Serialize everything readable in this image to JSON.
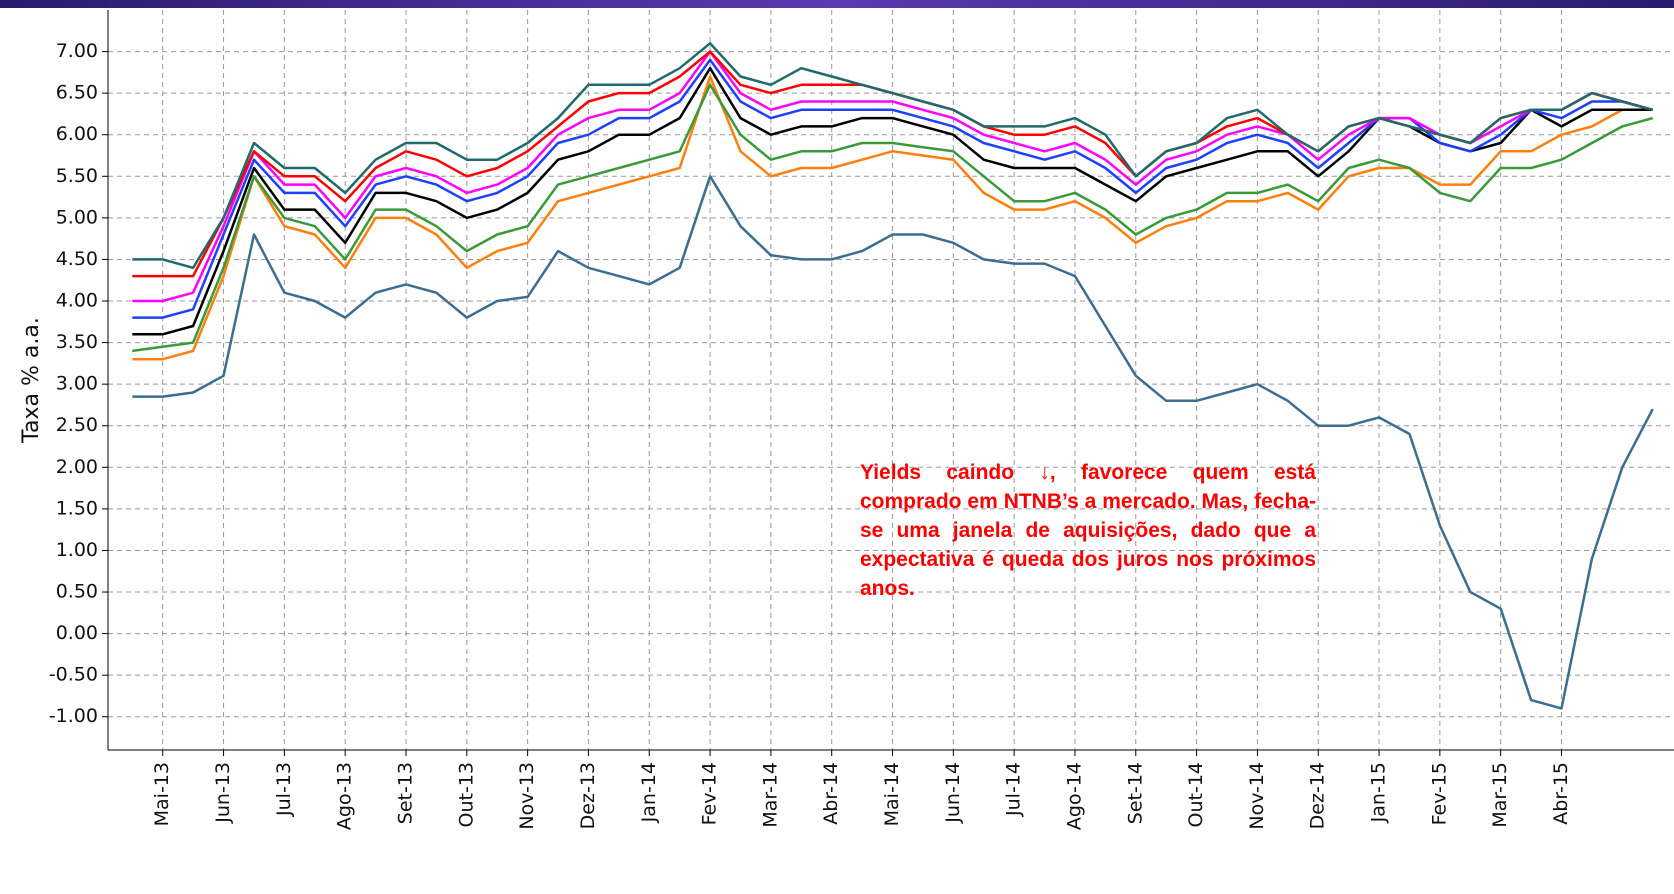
{
  "chart_data": {
    "type": "line",
    "y_label": "Taxa % a.a.",
    "annotation": "Yields caindo ↓, favorece quem está comprado em NTNB’s a mercado. Mas, fecha-se uma janela de aquisições, dado que a expectativa é queda dos juros nos próximos anos.",
    "grid": true,
    "xlim": [
      -0.9,
      24.85
    ],
    "ylim": [
      -1.4,
      7.5
    ],
    "yticks": [
      {
        "value": 7,
        "label": "7.00"
      },
      {
        "value": 6.5,
        "label": "6.50"
      },
      {
        "value": 6,
        "label": "6.00"
      },
      {
        "value": 5.5,
        "label": "5.50"
      },
      {
        "value": 5,
        "label": "5.00"
      },
      {
        "value": 4.5,
        "label": "4.50"
      },
      {
        "value": 4,
        "label": "4.00"
      },
      {
        "value": 3.5,
        "label": "3.50"
      },
      {
        "value": 3,
        "label": "3.00"
      },
      {
        "value": 2.5,
        "label": "2.50"
      },
      {
        "value": 2,
        "label": "2.00"
      },
      {
        "value": 1.5,
        "label": "1.50"
      },
      {
        "value": 1,
        "label": "1.00"
      },
      {
        "value": 0.5,
        "label": "0.50"
      },
      {
        "value": 0,
        "label": "0.00"
      },
      {
        "value": -0.5,
        "label": "-0.50"
      },
      {
        "value": -1,
        "label": "-1.00"
      }
    ],
    "xticks": [
      {
        "value": 0,
        "label": "Mai-13"
      },
      {
        "value": 1,
        "label": "Jun-13"
      },
      {
        "value": 2,
        "label": "Jul-13"
      },
      {
        "value": 3,
        "label": "Ago-13"
      },
      {
        "value": 4,
        "label": "Set-13"
      },
      {
        "value": 5,
        "label": "Out-13"
      },
      {
        "value": 6,
        "label": "Nov-13"
      },
      {
        "value": 7,
        "label": "Dez-13"
      },
      {
        "value": 8,
        "label": "Jan-14"
      },
      {
        "value": 9,
        "label": "Fev-14"
      },
      {
        "value": 10,
        "label": "Mar-14"
      },
      {
        "value": 11,
        "label": "Abr-14"
      },
      {
        "value": 12,
        "label": "Mai-14"
      },
      {
        "value": 13,
        "label": "Jun-14"
      },
      {
        "value": 14,
        "label": "Jul-14"
      },
      {
        "value": 15,
        "label": "Ago-14"
      },
      {
        "value": 16,
        "label": "Set-14"
      },
      {
        "value": 17,
        "label": "Out-14"
      },
      {
        "value": 18,
        "label": "Nov-14"
      },
      {
        "value": 19,
        "label": "Dez-14"
      },
      {
        "value": 20,
        "label": "Jan-15"
      },
      {
        "value": 21,
        "label": "Fev-15"
      },
      {
        "value": 22,
        "label": "Mar-15"
      },
      {
        "value": 23,
        "label": "Abr-15"
      }
    ],
    "x": [
      -0.5,
      0,
      0.5,
      1,
      1.5,
      2,
      2.5,
      3,
      3.5,
      4,
      4.5,
      5,
      5.5,
      6,
      6.5,
      7,
      7.5,
      8,
      8.5,
      9,
      9.5,
      10,
      10.5,
      11,
      11.5,
      12,
      12.5,
      13,
      13.5,
      14,
      14.5,
      15,
      15.5,
      16,
      16.5,
      17,
      17.5,
      18,
      18.5,
      19,
      19.5,
      20,
      20.5,
      21,
      21.5,
      22,
      22.5,
      23,
      23.5,
      24,
      24.5
    ],
    "series": [
      {
        "color": "#ff7f0e",
        "values": [
          3.3,
          3.3,
          3.4,
          4.3,
          5.5,
          4.9,
          4.8,
          4.4,
          5.0,
          5.0,
          4.8,
          4.4,
          4.6,
          4.7,
          5.2,
          5.3,
          5.4,
          5.5,
          5.6,
          6.7,
          5.8,
          5.5,
          5.6,
          5.6,
          5.7,
          5.8,
          5.75,
          5.7,
          5.3,
          5.1,
          5.1,
          5.2,
          5.0,
          4.7,
          4.9,
          5.0,
          5.2,
          5.2,
          5.3,
          5.1,
          5.5,
          5.6,
          5.6,
          5.4,
          5.4,
          5.8,
          5.8,
          6.0,
          6.1,
          6.3,
          6.3
        ]
      },
      {
        "color": "#3a9a3a",
        "values": [
          3.4,
          3.45,
          3.5,
          4.4,
          5.5,
          5.0,
          4.9,
          4.5,
          5.1,
          5.1,
          4.9,
          4.6,
          4.8,
          4.9,
          5.4,
          5.5,
          5.6,
          5.7,
          5.8,
          6.6,
          6.0,
          5.7,
          5.8,
          5.8,
          5.9,
          5.9,
          5.85,
          5.8,
          5.5,
          5.2,
          5.2,
          5.3,
          5.1,
          4.8,
          5.0,
          5.1,
          5.3,
          5.3,
          5.4,
          5.2,
          5.6,
          5.7,
          5.6,
          5.3,
          5.2,
          5.6,
          5.6,
          5.7,
          5.9,
          6.1,
          6.2
        ]
      },
      {
        "color": "#000000",
        "values": [
          3.6,
          3.6,
          3.7,
          4.6,
          5.6,
          5.1,
          5.1,
          4.7,
          5.3,
          5.3,
          5.2,
          5.0,
          5.1,
          5.3,
          5.7,
          5.8,
          6.0,
          6.0,
          6.2,
          6.8,
          6.2,
          6.0,
          6.1,
          6.1,
          6.2,
          6.2,
          6.1,
          6.0,
          5.7,
          5.6,
          5.6,
          5.6,
          5.4,
          5.2,
          5.5,
          5.6,
          5.7,
          5.8,
          5.8,
          5.5,
          5.8,
          6.2,
          6.1,
          5.9,
          5.8,
          5.9,
          6.3,
          6.1,
          6.3,
          6.3,
          6.3
        ]
      },
      {
        "color": "#1f3fff",
        "values": [
          3.8,
          3.8,
          3.9,
          4.8,
          5.7,
          5.3,
          5.3,
          4.9,
          5.4,
          5.5,
          5.4,
          5.2,
          5.3,
          5.5,
          5.9,
          6.0,
          6.2,
          6.2,
          6.4,
          6.9,
          6.4,
          6.2,
          6.3,
          6.3,
          6.3,
          6.3,
          6.2,
          6.1,
          5.9,
          5.8,
          5.7,
          5.8,
          5.6,
          5.3,
          5.6,
          5.7,
          5.9,
          6.0,
          5.9,
          5.6,
          5.9,
          6.2,
          6.2,
          5.9,
          5.8,
          6.0,
          6.3,
          6.2,
          6.4,
          6.4,
          6.3
        ]
      },
      {
        "color": "#ff00ff",
        "values": [
          4.0,
          4.0,
          4.1,
          4.9,
          5.8,
          5.4,
          5.4,
          5.0,
          5.5,
          5.6,
          5.5,
          5.3,
          5.4,
          5.6,
          6.0,
          6.2,
          6.3,
          6.3,
          6.5,
          7.0,
          6.5,
          6.3,
          6.4,
          6.4,
          6.4,
          6.4,
          6.3,
          6.2,
          6.0,
          5.9,
          5.8,
          5.9,
          5.7,
          5.4,
          5.7,
          5.8,
          6.0,
          6.1,
          6.0,
          5.7,
          6.0,
          6.2,
          6.2,
          6.0,
          5.9,
          6.1,
          6.3,
          6.3,
          6.5,
          6.4,
          6.3
        ]
      },
      {
        "color": "#ff0000",
        "values": [
          4.3,
          4.3,
          4.3,
          5.0,
          5.8,
          5.5,
          5.5,
          5.2,
          5.6,
          5.8,
          5.7,
          5.5,
          5.6,
          5.8,
          6.1,
          6.4,
          6.5,
          6.5,
          6.7,
          7.0,
          6.6,
          6.5,
          6.6,
          6.6,
          6.6,
          6.5,
          6.4,
          6.3,
          6.1,
          6.0,
          6.0,
          6.1,
          5.9,
          5.5,
          5.8,
          5.9,
          6.1,
          6.2,
          6.0,
          5.8,
          6.1,
          6.2,
          6.1,
          6.0,
          5.9,
          6.2,
          6.3,
          6.3,
          6.5,
          6.4,
          6.3
        ]
      },
      {
        "color": "#1f6b6b",
        "values": [
          4.5,
          4.5,
          4.4,
          5.0,
          5.9,
          5.6,
          5.6,
          5.3,
          5.7,
          5.9,
          5.9,
          5.7,
          5.7,
          5.9,
          6.2,
          6.6,
          6.6,
          6.6,
          6.8,
          7.1,
          6.7,
          6.6,
          6.8,
          6.7,
          6.6,
          6.5,
          6.4,
          6.3,
          6.1,
          6.1,
          6.1,
          6.2,
          6.0,
          5.5,
          5.8,
          5.9,
          6.2,
          6.3,
          6.0,
          5.8,
          6.1,
          6.2,
          6.1,
          6.0,
          5.9,
          6.2,
          6.3,
          6.3,
          6.5,
          6.4,
          6.3
        ]
      },
      {
        "color": "#3b6e8f",
        "values": [
          2.85,
          2.85,
          2.9,
          3.1,
          4.8,
          4.1,
          4.0,
          3.8,
          4.1,
          4.2,
          4.1,
          3.8,
          4.0,
          4.05,
          4.6,
          4.4,
          4.3,
          4.2,
          4.4,
          5.5,
          4.9,
          4.55,
          4.5,
          4.5,
          4.6,
          4.8,
          4.8,
          4.7,
          4.5,
          4.45,
          4.45,
          4.3,
          3.7,
          3.1,
          2.8,
          2.8,
          2.9,
          3.0,
          2.8,
          2.5,
          2.5,
          2.6,
          2.4,
          1.3,
          0.5,
          0.3,
          -0.8,
          -0.9,
          0.9,
          2.0,
          2.7
        ]
      }
    ]
  }
}
